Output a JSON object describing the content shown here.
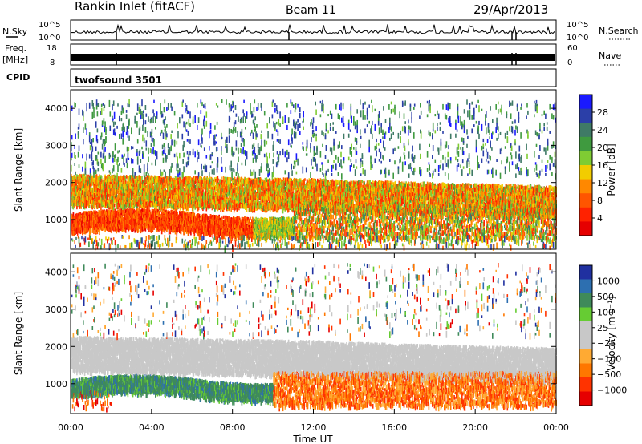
{
  "header": {
    "station": "Rankin Inlet (fitACF)",
    "beam": "Beam 11",
    "date": "29/Apr/2013"
  },
  "top_panels": {
    "nsky_label": "N.Sky",
    "nsky_ticks": [
      "10^5",
      "10^0"
    ],
    "nsearch_label": "N.Search",
    "nsearch_ticks": [
      "10^5",
      "10^0"
    ],
    "freq_label": "Freq.",
    "freq_unit": "[MHz]",
    "freq_ticks": [
      "18",
      "8"
    ],
    "nave_label": "Nave",
    "nave_ticks": [
      "60",
      "0"
    ],
    "cpid_label": "CPID",
    "cpid_value": "twofsound 3501"
  },
  "colors": {
    "power_scale": [
      "#1a1aff",
      "#2b3fa8",
      "#3f7a66",
      "#3f9a3f",
      "#7fcc33",
      "#f2cc00",
      "#ff8800",
      "#ff5500",
      "#ff2200",
      "#e60000"
    ],
    "velocity_scale": [
      "#2030a0",
      "#2d6fb0",
      "#3f8a5a",
      "#66cc33",
      "#c8c8c8",
      "#c8c8c8",
      "#ffaa33",
      "#ff7700",
      "#ff3300",
      "#e60000"
    ]
  },
  "chart_data": [
    {
      "type": "heatmap",
      "name": "power",
      "ylabel": "Slant Range [km]",
      "yticks": [
        "4000",
        "3000",
        "2000",
        "1000"
      ],
      "ylim": [
        200,
        4500
      ],
      "xlim": [
        0,
        24
      ],
      "colorbar_label": "Power [dB]",
      "colorbar_ticks": [
        "28",
        "24",
        "20",
        "16",
        "12",
        "8",
        "4"
      ]
    },
    {
      "type": "heatmap",
      "name": "velocity",
      "ylabel": "Slant Range [km]",
      "yticks": [
        "4000",
        "3000",
        "2000",
        "1000"
      ],
      "ylim": [
        200,
        4500
      ],
      "xlim": [
        0,
        24
      ],
      "xlabel": "Time UT",
      "xticks": [
        "00:00",
        "04:00",
        "08:00",
        "12:00",
        "16:00",
        "20:00",
        "00:00"
      ],
      "colorbar_label": "Velocity [m s⁻¹]",
      "colorbar_ticks": [
        "1000",
        "500",
        "100",
        "25",
        "−25",
        "−100",
        "−500",
        "−1000"
      ]
    }
  ]
}
